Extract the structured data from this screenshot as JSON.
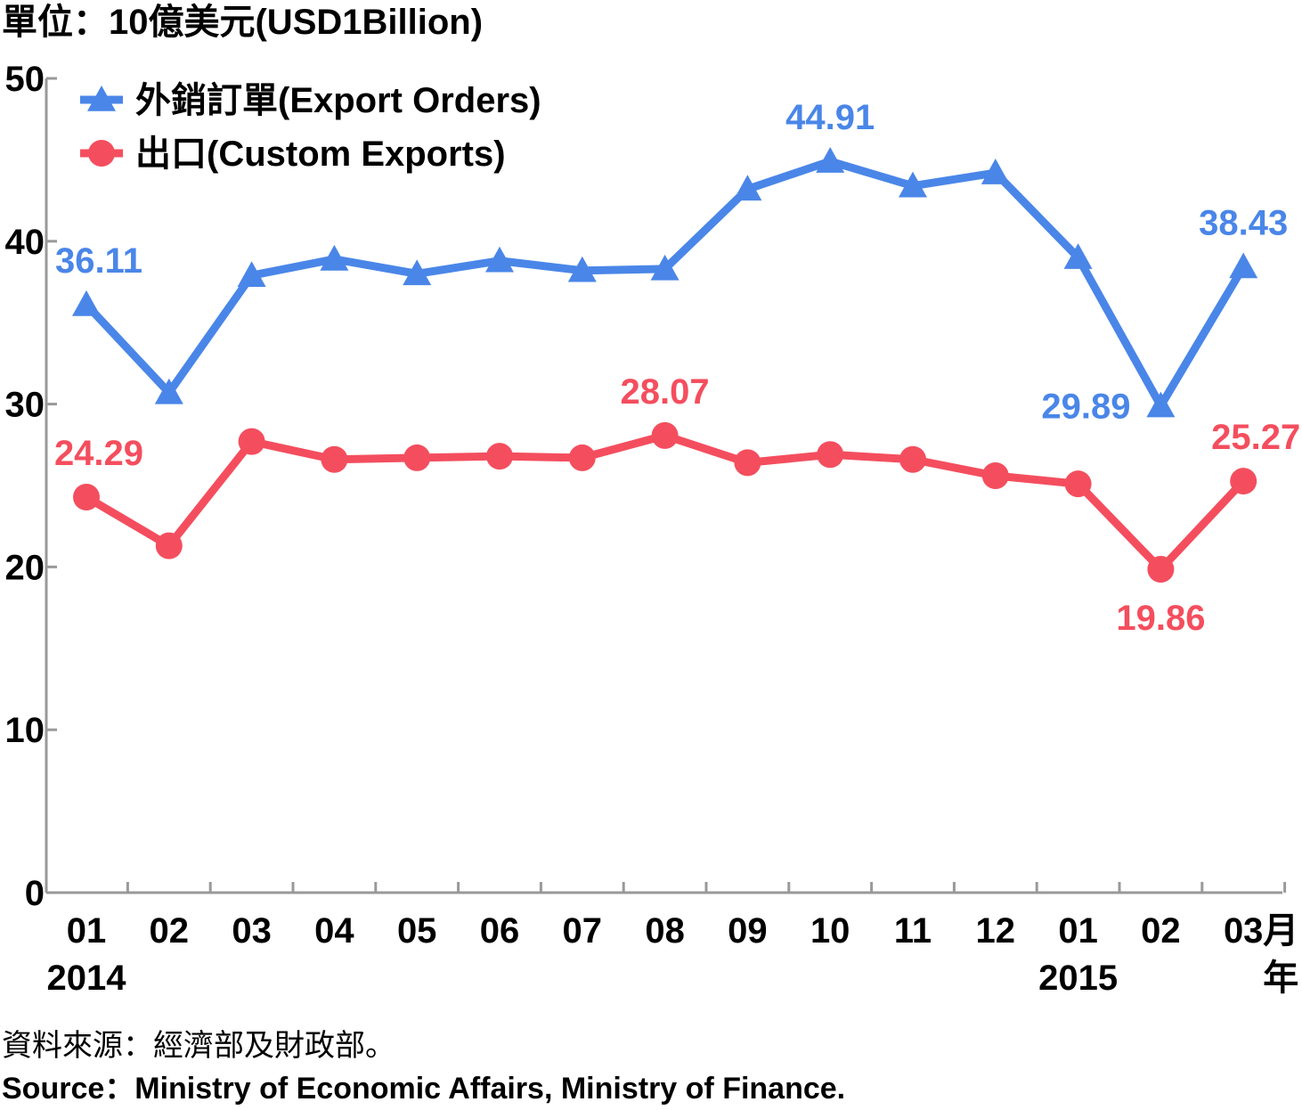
{
  "chart_data": {
    "type": "line",
    "unit_label": "單位：10億美元(USD1Billion)",
    "categories": [
      "01",
      "02",
      "03",
      "04",
      "05",
      "06",
      "07",
      "08",
      "09",
      "10",
      "11",
      "12",
      "01",
      "02",
      "03"
    ],
    "x_year_labels": [
      {
        "index": 0,
        "text": "2014"
      },
      {
        "index": 12,
        "text": "2015"
      }
    ],
    "x_unit_month": "月",
    "x_unit_year": "年",
    "ylim": [
      0,
      50
    ],
    "yticks": [
      0,
      10,
      20,
      30,
      40,
      50
    ],
    "grid": false,
    "legend_position": "top-left",
    "series": [
      {
        "name": "外銷訂單(Export Orders)",
        "color": "#4a86e8",
        "marker": "triangle",
        "values": [
          36.11,
          30.7,
          37.9,
          38.9,
          38.0,
          38.8,
          38.2,
          38.3,
          43.2,
          44.91,
          43.4,
          44.2,
          39.0,
          29.89,
          38.43
        ],
        "labels": [
          {
            "index": 0,
            "text": "36.11"
          },
          {
            "index": 9,
            "text": "44.91"
          },
          {
            "index": 13,
            "text": "29.89"
          },
          {
            "index": 14,
            "text": "38.43"
          }
        ]
      },
      {
        "name": "出口(Custom Exports)",
        "color": "#f44e5e",
        "marker": "circle",
        "values": [
          24.29,
          21.3,
          27.7,
          26.6,
          26.7,
          26.8,
          26.7,
          28.07,
          26.4,
          26.9,
          26.6,
          25.6,
          25.1,
          19.86,
          25.27
        ],
        "labels": [
          {
            "index": 0,
            "text": "24.29"
          },
          {
            "index": 7,
            "text": "28.07"
          },
          {
            "index": 13,
            "text": "19.86"
          },
          {
            "index": 14,
            "text": "25.27"
          }
        ]
      }
    ]
  },
  "source": {
    "zh": "資料來源：經濟部及財政部。",
    "en": "Source：Ministry of Economic Affairs, Ministry of Finance."
  }
}
